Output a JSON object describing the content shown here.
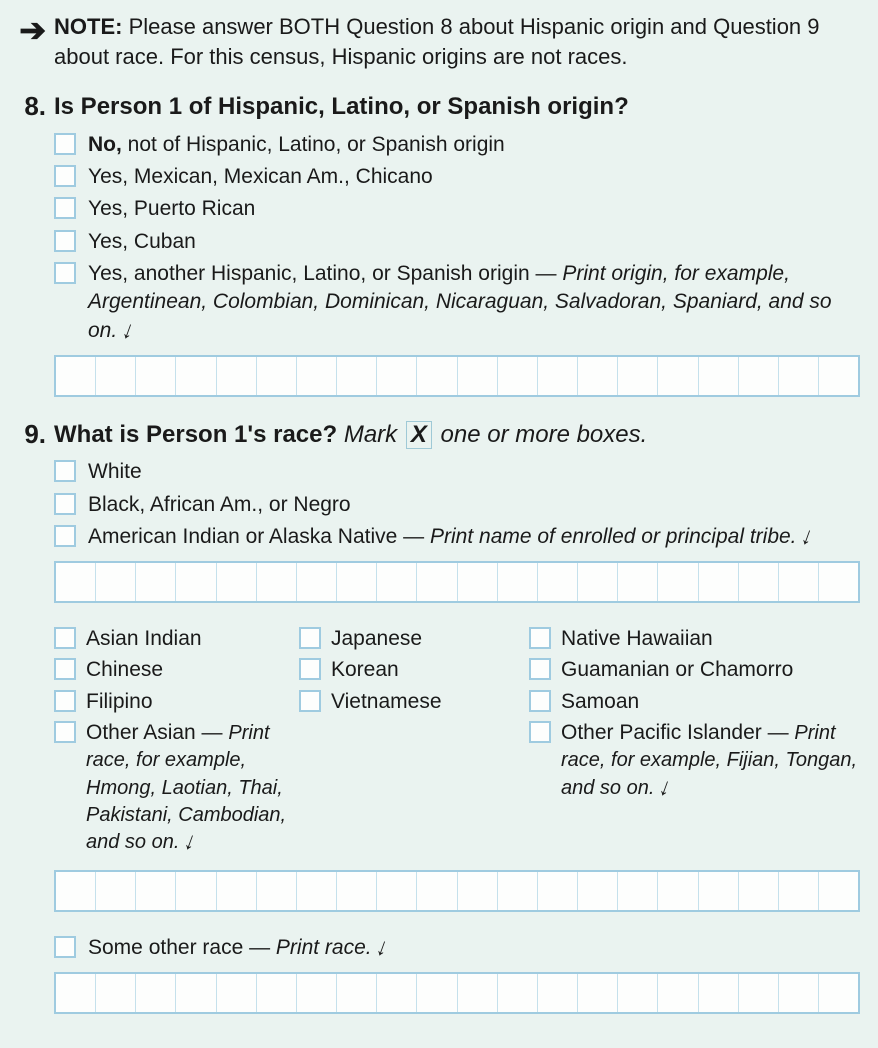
{
  "colors": {
    "background": "#eaf3f0",
    "text": "#1a1a1a",
    "checkbox_border": "#9fcbe0",
    "checkbox_fill": "#fdfefd",
    "entry_cell_divider": "#c5e1ec"
  },
  "note": {
    "lead": "NOTE:",
    "body": "Please answer BOTH Question 8 about Hispanic origin and Question 9 about race. For this census, Hispanic origins are not races."
  },
  "q8": {
    "number": "8.",
    "text": "Is Person 1 of Hispanic, Latino, or Spanish origin?",
    "options": {
      "a_bold": "No,",
      "a_rest": " not of Hispanic, Latino, or Spanish origin",
      "b": "Yes, Mexican, Mexican Am., Chicano",
      "c": "Yes, Puerto Rican",
      "d": "Yes, Cuban",
      "e_main": "Yes, another Hispanic, Latino, or Spanish origin — ",
      "e_ital": "Print origin, for example, Argentinean, Colombian, Dominican, Nicaraguan, Salvadoran, Spaniard, and so on."
    },
    "entry_cells": 20
  },
  "q9": {
    "number": "9.",
    "text_lead": "What is Person 1's race?",
    "instr_before": " Mark ",
    "mark_x": "X",
    "instr_after": " one or more boxes.",
    "top_options": {
      "a": "White",
      "b": "Black, African Am., or Negro",
      "c_main": "American Indian or Alaska Native — ",
      "c_ital": "Print name of enrolled or principal tribe."
    },
    "entry_cells_1": 20,
    "col1": {
      "a": "Asian Indian",
      "b": "Chinese",
      "c": "Filipino"
    },
    "col2": {
      "a": "Japanese",
      "b": "Korean",
      "c": "Vietnamese"
    },
    "col3": {
      "a": "Native Hawaiian",
      "b": "Guamanian or Chamorro",
      "c": "Samoan"
    },
    "other_asian_main": "Other Asian — ",
    "other_asian_ital": "Print race, for example, Hmong, Laotian, Thai, Pakistani, Cambodian, and so on.",
    "other_pi_main": "Other Pacific Islander — ",
    "other_pi_ital": "Print race, for example, Fijian, Tongan, and so on.",
    "entry_cells_2": 20,
    "some_other_main": "Some other race — ",
    "some_other_ital": "Print race.",
    "entry_cells_3": 20
  }
}
